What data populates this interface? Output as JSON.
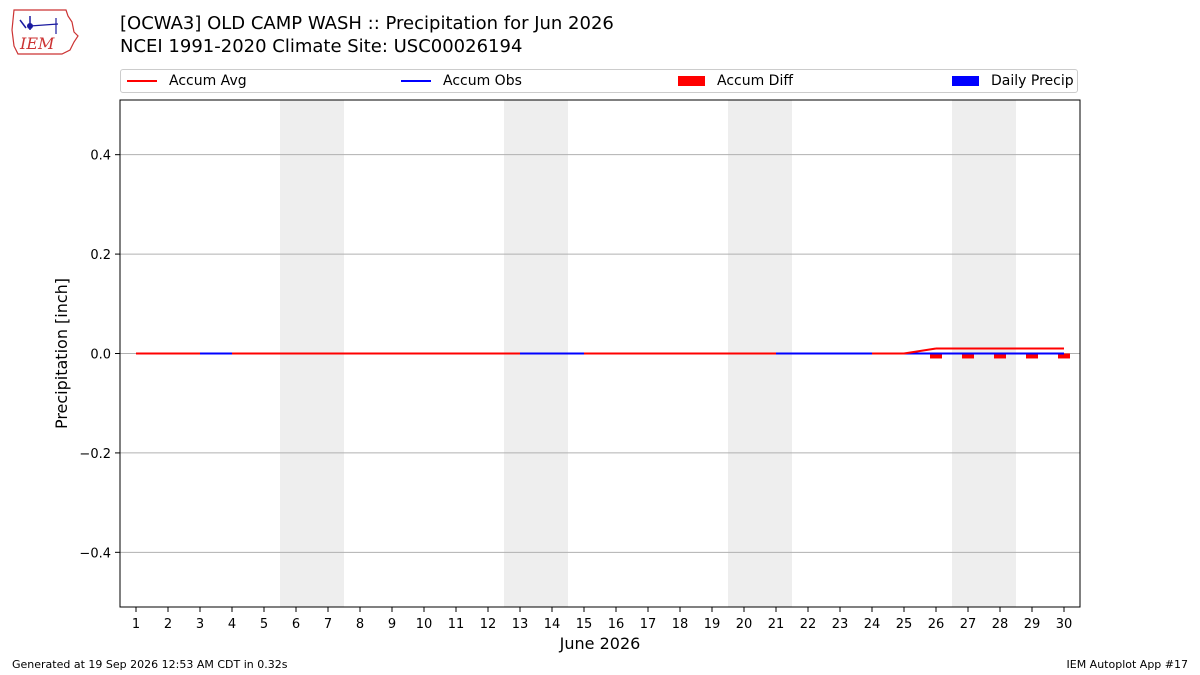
{
  "logo": {
    "text": "IEM"
  },
  "header": {
    "title": "[OCWA3] OLD CAMP WASH :: Precipitation for Jun 2026",
    "subtitle": "NCEI 1991-2020 Climate Site: USC00026194"
  },
  "legend": [
    {
      "label": "Accum Avg",
      "kind": "line",
      "color": "#ff0000"
    },
    {
      "label": "Accum Obs",
      "kind": "line",
      "color": "#0000ff"
    },
    {
      "label": "Accum Diff",
      "kind": "box",
      "color": "#ff0000"
    },
    {
      "label": "Daily Precip",
      "kind": "box",
      "color": "#0000ff"
    }
  ],
  "chart_data": {
    "type": "line",
    "xlabel": "June 2026",
    "ylabel": "Precipitation [inch]",
    "xlim": [
      0.5,
      30.5
    ],
    "ylim": [
      -0.51,
      0.51
    ],
    "yticks": [
      -0.4,
      -0.2,
      0.0,
      0.2,
      0.4
    ],
    "ytick_labels": [
      "−0.4",
      "−0.2",
      "0.0",
      "0.2",
      "0.4"
    ],
    "x": [
      1,
      2,
      3,
      4,
      5,
      6,
      7,
      8,
      9,
      10,
      11,
      12,
      13,
      14,
      15,
      16,
      17,
      18,
      19,
      20,
      21,
      22,
      23,
      24,
      25,
      26,
      27,
      28,
      29,
      30
    ],
    "weekend_bands": [
      [
        5.5,
        7.5
      ],
      [
        12.5,
        14.5
      ],
      [
        19.5,
        21.5
      ],
      [
        26.5,
        28.5
      ]
    ],
    "grid": "y",
    "series": [
      {
        "name": "Accum Avg",
        "type": "line",
        "color": "#ff0000",
        "values": [
          0,
          0,
          0,
          0,
          0,
          0,
          0,
          0,
          0,
          0,
          0,
          0,
          0,
          0,
          0,
          0,
          0,
          0,
          0,
          0,
          0,
          0,
          0,
          0,
          0,
          0.01,
          0.01,
          0.01,
          0.01,
          0.01
        ]
      },
      {
        "name": "Accum Obs",
        "type": "line",
        "color": "#0000ff",
        "values": [
          0,
          0,
          0,
          0,
          0,
          0,
          0,
          0,
          0,
          0,
          0,
          0,
          0,
          0,
          0,
          0,
          0,
          0,
          0,
          0,
          0,
          0,
          0,
          0,
          0,
          0,
          0,
          0,
          0,
          0
        ]
      },
      {
        "name": "Accum Diff",
        "type": "bar",
        "color": "#ff0000",
        "values": [
          0,
          0,
          0,
          0,
          0,
          0,
          0,
          0,
          0,
          0,
          0,
          0,
          0,
          0,
          0,
          0,
          0,
          0,
          0,
          0,
          0,
          0,
          0,
          0,
          0,
          -0.01,
          -0.01,
          -0.01,
          -0.01,
          -0.01
        ]
      },
      {
        "name": "Daily Precip",
        "type": "bar",
        "color": "#0000ff",
        "values": [
          0,
          0,
          0,
          0,
          0,
          0,
          0,
          0,
          0,
          0,
          0,
          0,
          0,
          0,
          0,
          0,
          0,
          0,
          0,
          0,
          0,
          0,
          0,
          0,
          0,
          0,
          0,
          0,
          0,
          0
        ]
      }
    ]
  },
  "footer": {
    "generated": "Generated at 19 Sep 2026 12:53 AM CDT in 0.32s",
    "app": "IEM Autoplot App #17"
  }
}
